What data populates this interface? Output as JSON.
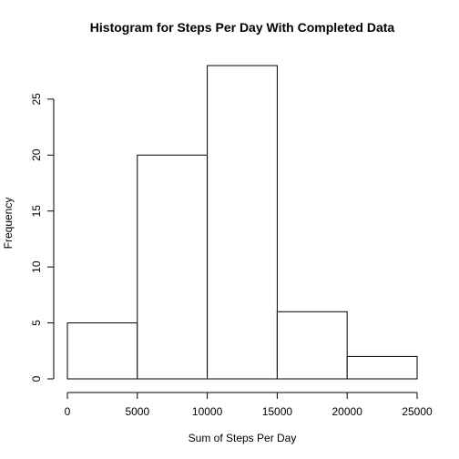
{
  "chart_data": {
    "type": "bar",
    "title": "Histogram for Steps Per Day With Completed Data",
    "xlabel": "Sum of Steps Per Day",
    "ylabel": "Frequency",
    "bins": [
      {
        "start": 0,
        "end": 5000,
        "count": 5
      },
      {
        "start": 5000,
        "end": 10000,
        "count": 20
      },
      {
        "start": 10000,
        "end": 15000,
        "count": 28
      },
      {
        "start": 15000,
        "end": 20000,
        "count": 6
      },
      {
        "start": 20000,
        "end": 25000,
        "count": 2
      }
    ],
    "xlim": [
      0,
      25000
    ],
    "ylim": [
      0,
      28
    ],
    "x_ticks": [
      0,
      5000,
      10000,
      15000,
      20000,
      25000
    ],
    "x_tick_labels": [
      "0",
      "5000",
      "10000",
      "15000",
      "20000",
      "25000"
    ],
    "y_ticks": [
      0,
      5,
      10,
      15,
      20,
      25
    ],
    "y_tick_labels": [
      "0",
      "5",
      "10",
      "15",
      "20",
      "25"
    ],
    "grid": false,
    "bar_fill": "#ffffff",
    "bar_stroke": "#000000"
  }
}
